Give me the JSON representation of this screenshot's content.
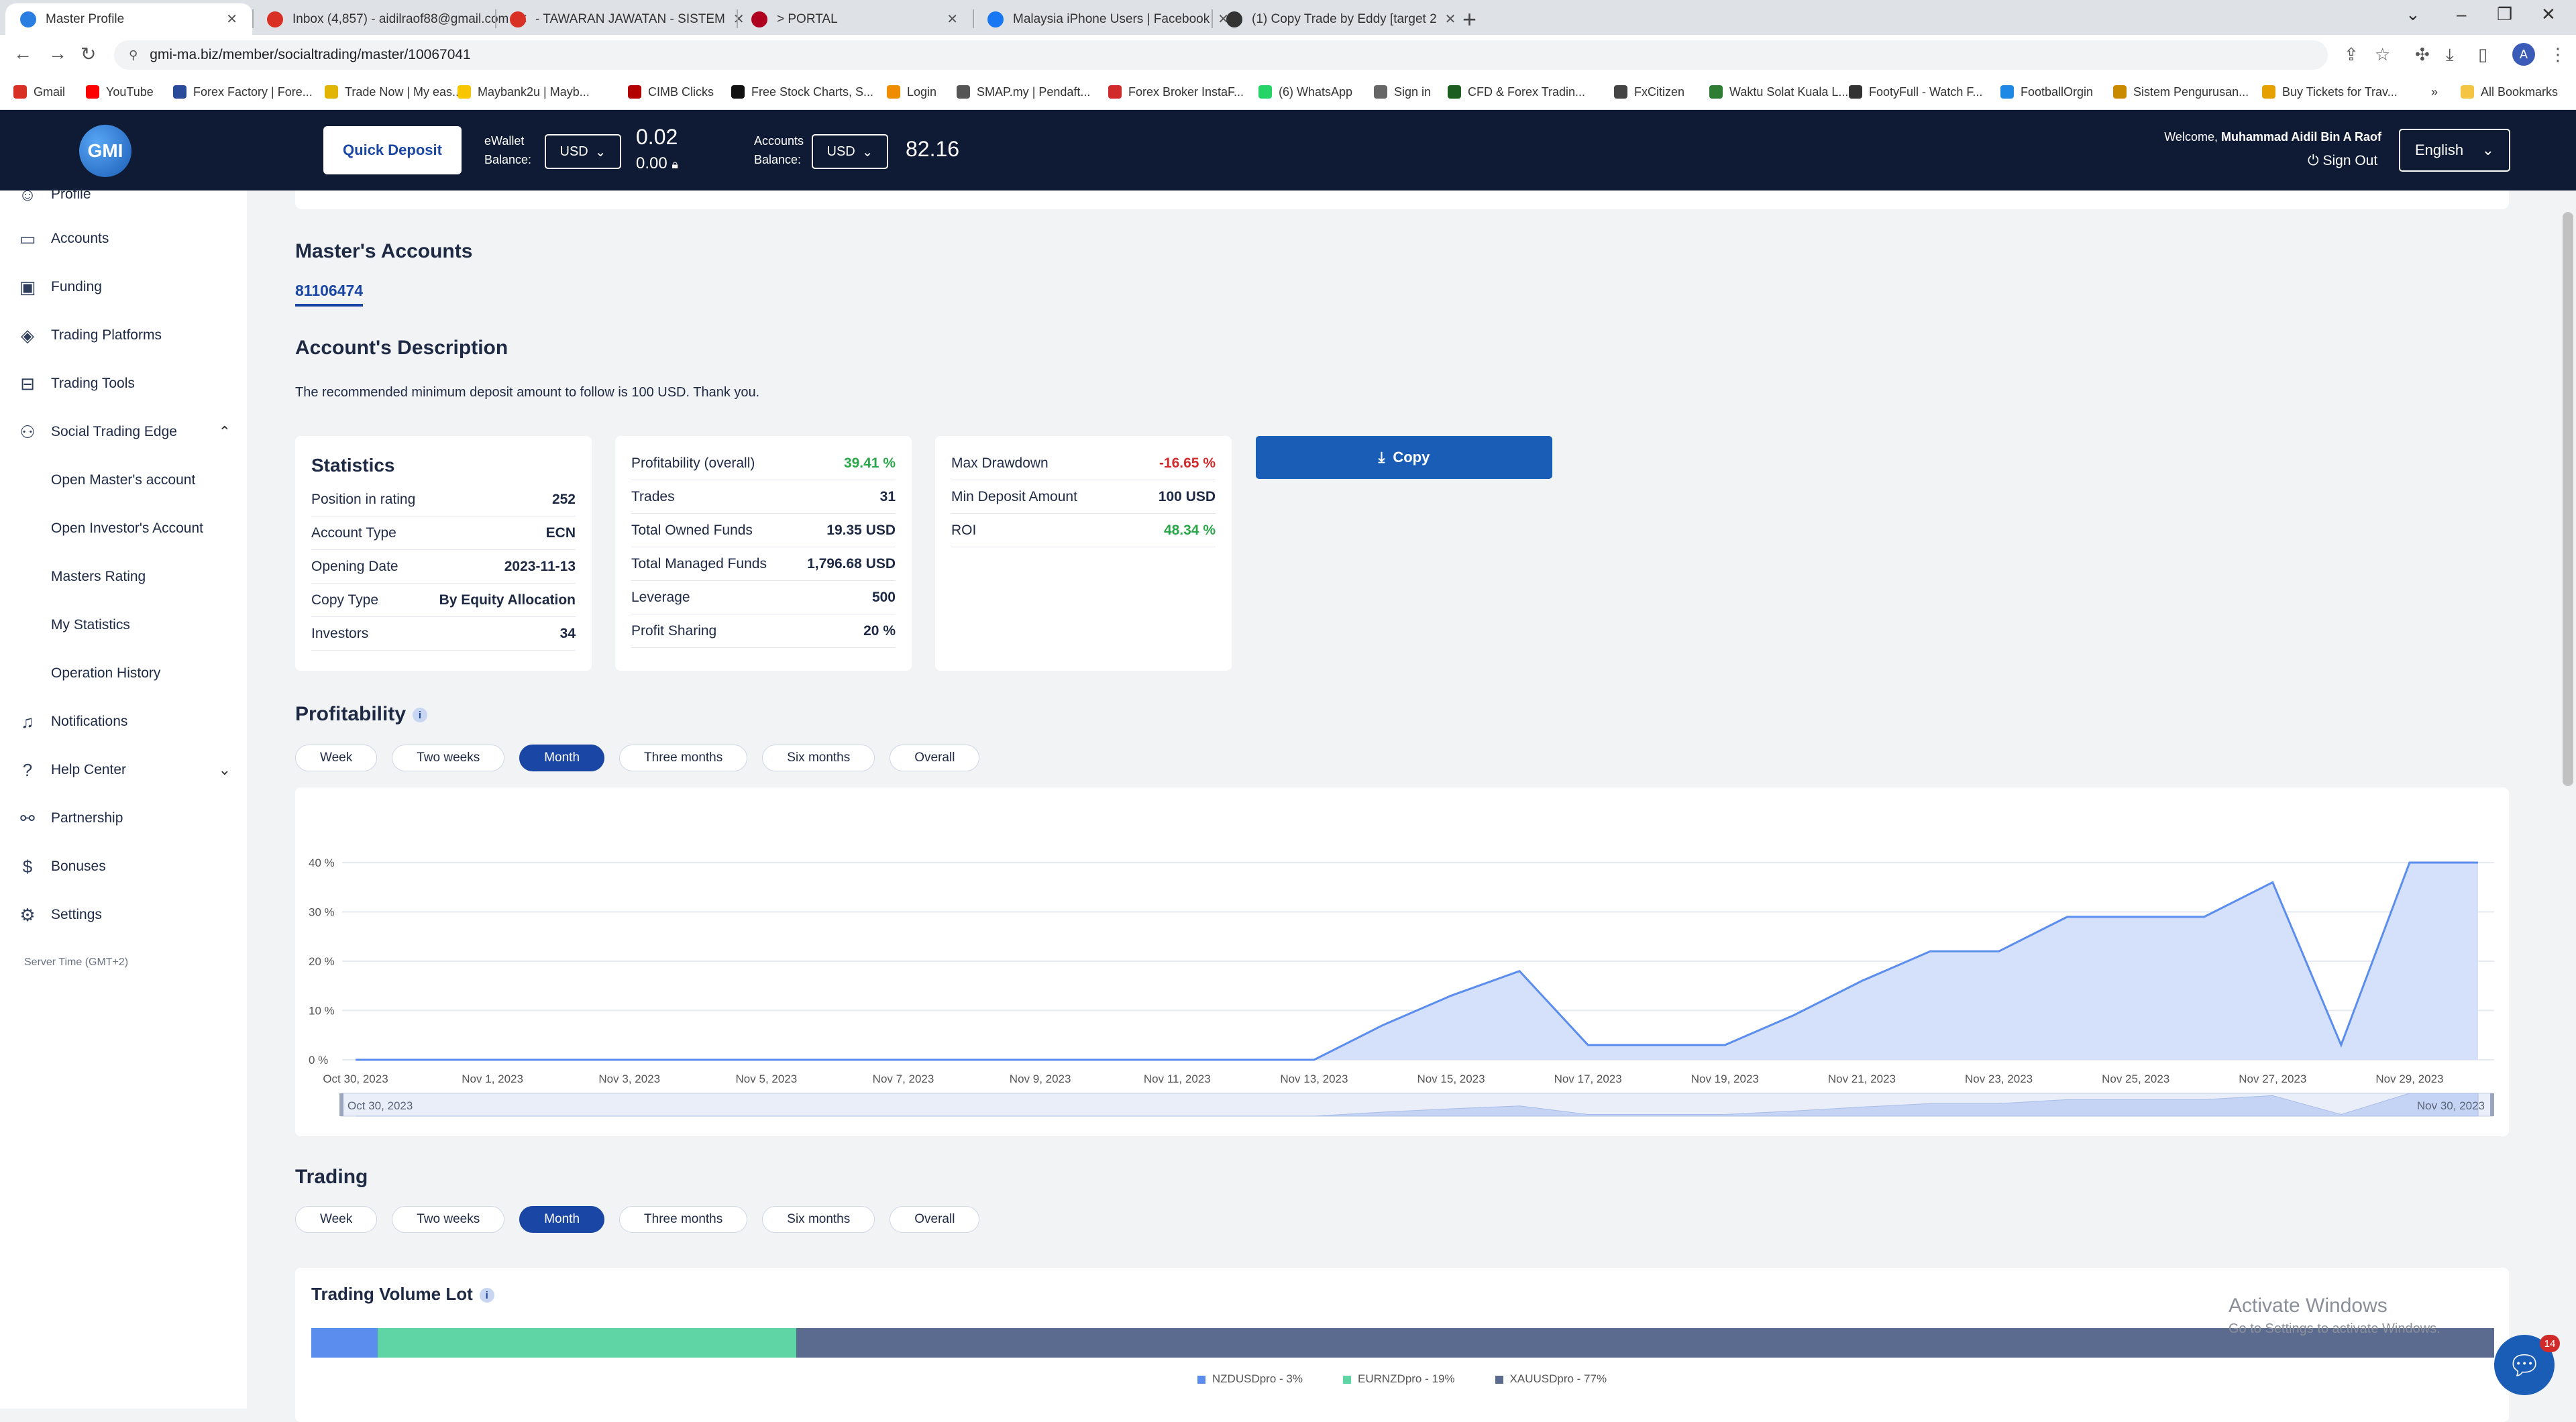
{
  "browser": {
    "tabs": [
      {
        "title": "Master Profile",
        "active": true,
        "favicon_color": "#2a7de1"
      },
      {
        "title": "Inbox (4,857) - aidilraof88@gmail.com",
        "active": false,
        "favicon_color": "#d93025"
      },
      {
        "title": "- TAWARAN JAWATAN - SISTEM",
        "active": false,
        "favicon_color": "#d93025"
      },
      {
        "title": "> PORTAL",
        "active": false,
        "favicon_color": "#b00020"
      },
      {
        "title": "Malaysia iPhone Users | Facebook",
        "active": false,
        "favicon_color": "#1877f2"
      },
      {
        "title": "(1) Copy Trade by Eddy [target 2",
        "active": false,
        "favicon_color": "#333333"
      }
    ],
    "url": "gmi-ma.biz/member/socialtrading/master/10067041",
    "bookmarks": [
      {
        "label": "Gmail",
        "color": "#d93025"
      },
      {
        "label": "YouTube",
        "color": "#ff0000"
      },
      {
        "label": "Forex Factory | Fore...",
        "color": "#2a4a9a"
      },
      {
        "label": "Trade Now | My eas...",
        "color": "#e0b400"
      },
      {
        "label": "Maybank2u | Mayb...",
        "color": "#f7c600"
      },
      {
        "label": "CIMB Clicks",
        "color": "#b30000"
      },
      {
        "label": "Free Stock Charts, S...",
        "color": "#111111"
      },
      {
        "label": "Login",
        "color": "#f08c00"
      },
      {
        "label": "SMAP.my | Pendaft...",
        "color": "#555555"
      },
      {
        "label": "Forex Broker InstaF...",
        "color": "#d12a2a"
      },
      {
        "label": "(6) WhatsApp",
        "color": "#25d366"
      },
      {
        "label": "Sign in",
        "color": "#666666"
      },
      {
        "label": "CFD & Forex Tradin...",
        "color": "#1b5e20"
      },
      {
        "label": "FxCitizen",
        "color": "#444444"
      },
      {
        "label": "Waktu Solat Kuala L...",
        "color": "#2e7d32"
      },
      {
        "label": "FootyFull - Watch F...",
        "color": "#333333"
      },
      {
        "label": "FootballOrgin",
        "color": "#1e88e5"
      },
      {
        "label": "Sistem Pengurusan...",
        "color": "#c98a00"
      },
      {
        "label": "Buy Tickets for Trav...",
        "color": "#e6a100"
      }
    ],
    "all_bookmarks": "All Bookmarks"
  },
  "header": {
    "logo": "GMI",
    "quick_deposit": "Quick Deposit",
    "ewallet_label": "eWallet Balance:",
    "ewallet_currency": "USD",
    "ewallet_balance": "0.02",
    "ewallet_locked": "0.00",
    "accounts_label": "Accounts Balance:",
    "accounts_currency": "USD",
    "accounts_balance": "82.16",
    "welcome_prefix": "Welcome,",
    "welcome_name": "Muhammad Aidil Bin A Raof",
    "sign_out": "Sign Out",
    "language": "English"
  },
  "sidebar": {
    "items": [
      {
        "label": "Profile",
        "icon": "user-icon"
      },
      {
        "label": "Accounts",
        "icon": "card-icon"
      },
      {
        "label": "Funding",
        "icon": "wallet-icon"
      },
      {
        "label": "Trading Platforms",
        "icon": "layers-icon"
      },
      {
        "label": "Trading Tools",
        "icon": "toolbox-icon"
      },
      {
        "label": "Social Trading Edge",
        "icon": "people-icon"
      }
    ],
    "sub_items": [
      "Open Master's account",
      "Open Investor's Account",
      "Masters Rating",
      "My Statistics",
      "Operation History"
    ],
    "bottom_items": [
      {
        "label": "Notifications",
        "icon": "bell-icon"
      },
      {
        "label": "Help Center",
        "icon": "help-icon"
      },
      {
        "label": "Partnership",
        "icon": "handshake-icon"
      },
      {
        "label": "Bonuses",
        "icon": "dollar-icon"
      },
      {
        "label": "Settings",
        "icon": "gear-icon"
      }
    ],
    "server_time": "Server Time (GMT+2)"
  },
  "main": {
    "masters_accounts_title": "Master's Accounts",
    "account_number": "81106474",
    "description_title": "Account's Description",
    "description_text": "The recommended minimum deposit amount to follow is 100 USD. Thank you.",
    "statistics": {
      "title": "Statistics",
      "rows": [
        {
          "label": "Position in rating",
          "value": "252"
        },
        {
          "label": "Account Type",
          "value": "ECN"
        },
        {
          "label": "Opening Date",
          "value": "2023-11-13"
        },
        {
          "label": "Copy Type",
          "value": "By Equity Allocation"
        },
        {
          "label": "Investors",
          "value": "34"
        }
      ]
    },
    "card2": [
      {
        "label": "Profitability (overall)",
        "value": "39.41 %",
        "tone": "green"
      },
      {
        "label": "Trades",
        "value": "31",
        "tone": ""
      },
      {
        "label": "Total Owned Funds",
        "value": "19.35 USD",
        "tone": ""
      },
      {
        "label": "Total Managed Funds",
        "value": "1,796.68 USD",
        "tone": ""
      },
      {
        "label": "Leverage",
        "value": "500",
        "tone": ""
      },
      {
        "label": "Profit Sharing",
        "value": "20 %",
        "tone": ""
      }
    ],
    "card3": [
      {
        "label": "Max Drawdown",
        "value": "-16.65 %",
        "tone": "red"
      },
      {
        "label": "Min Deposit Amount",
        "value": "100 USD",
        "tone": ""
      },
      {
        "label": "ROI",
        "value": "48.34 %",
        "tone": "green"
      }
    ],
    "copy_button": "Copy",
    "profitability_title": "Profitability",
    "periods": [
      "Week",
      "Two weeks",
      "Month",
      "Three months",
      "Six months",
      "Overall"
    ],
    "active_period": "Month",
    "trading_title": "Trading",
    "trading_volume_title": "Trading Volume Lot",
    "volume": [
      {
        "name": "NZDUSDpro - 3%",
        "share": 3,
        "color": "#5b8def"
      },
      {
        "name": "EURNZDpro - 19%",
        "share": 19,
        "color": "#5fd4a4"
      },
      {
        "name": "XAUUSDpro - 77%",
        "share": 77,
        "color": "#5b6b8f"
      }
    ]
  },
  "chart_data": {
    "type": "area",
    "x": [
      "Oct 30, 2023",
      "Oct 31, 2023",
      "Nov 1, 2023",
      "Nov 2, 2023",
      "Nov 3, 2023",
      "Nov 4, 2023",
      "Nov 5, 2023",
      "Nov 6, 2023",
      "Nov 7, 2023",
      "Nov 8, 2023",
      "Nov 9, 2023",
      "Nov 10, 2023",
      "Nov 11, 2023",
      "Nov 12, 2023",
      "Nov 13, 2023",
      "Nov 14, 2023",
      "Nov 15, 2023",
      "Nov 16, 2023",
      "Nov 17, 2023",
      "Nov 18, 2023",
      "Nov 19, 2023",
      "Nov 20, 2023",
      "Nov 21, 2023",
      "Nov 22, 2023",
      "Nov 23, 2023",
      "Nov 24, 2023",
      "Nov 25, 2023",
      "Nov 26, 2023",
      "Nov 27, 2023",
      "Nov 28, 2023",
      "Nov 29, 2023",
      "Nov 30, 2023"
    ],
    "series": [
      {
        "values": [
          0,
          0,
          0,
          0,
          0,
          0,
          0,
          0,
          0,
          0,
          0,
          0,
          0,
          0,
          0,
          7,
          13,
          18,
          3,
          3,
          3,
          9,
          16,
          22,
          22,
          29,
          29,
          29,
          36,
          3,
          40,
          40
        ]
      }
    ],
    "tick_labels": [
      "Oct 30, 2023",
      "Nov 1, 2023",
      "Nov 3, 2023",
      "Nov 5, 2023",
      "Nov 7, 2023",
      "Nov 9, 2023",
      "Nov 11, 2023",
      "Nov 13, 2023",
      "Nov 15, 2023",
      "Nov 17, 2023",
      "Nov 19, 2023",
      "Nov 21, 2023",
      "Nov 23, 2023",
      "Nov 25, 2023",
      "Nov 27, 2023",
      "Nov 29, 2023"
    ],
    "y_ticks": [
      "0 %",
      "10 %",
      "20 %",
      "30 %",
      "40 %"
    ],
    "ylim": [
      0,
      40
    ],
    "navigator_start": "Oct 30, 2023",
    "navigator_end": "Nov 30, 2023",
    "color": "#5b8def",
    "fill": "#d5e1fa"
  },
  "overlay": {
    "activate_title": "Activate Windows",
    "activate_sub": "Go to Settings to activate Windows.",
    "chat_badge": "14"
  }
}
